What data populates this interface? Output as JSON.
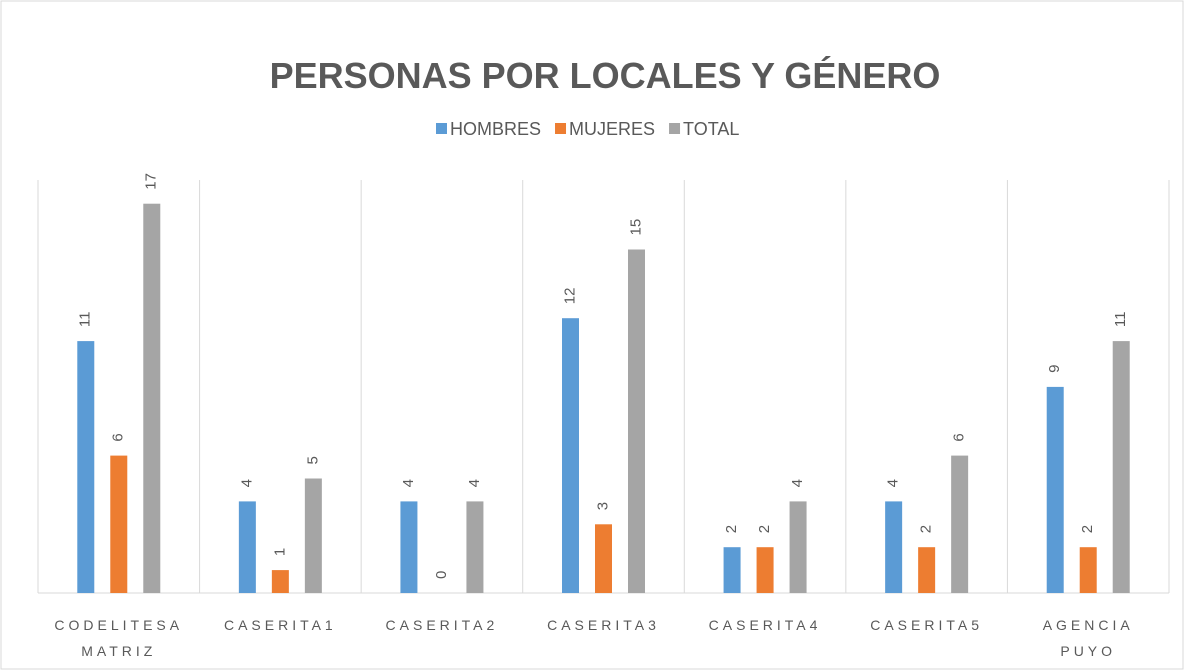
{
  "chart_data": {
    "type": "bar",
    "title": "PERSONAS POR LOCALES Y GÉNERO",
    "categories": [
      "CODELITESA MATRIZ",
      "CASERITA1",
      "CASERITA2",
      "CASERITA3",
      "CASERITA4",
      "CASERITA5",
      "AGENCIA PUYO"
    ],
    "series": [
      {
        "name": "HOMBRES",
        "color": "#5b9bd5",
        "values": [
          11,
          4,
          4,
          12,
          2,
          4,
          9
        ]
      },
      {
        "name": "MUJERES",
        "color": "#ed7d31",
        "values": [
          6,
          1,
          0,
          3,
          2,
          2,
          2
        ]
      },
      {
        "name": "TOTAL",
        "color": "#a5a5a5",
        "values": [
          17,
          5,
          4,
          15,
          4,
          6,
          11
        ]
      }
    ],
    "legend": "top"
  }
}
